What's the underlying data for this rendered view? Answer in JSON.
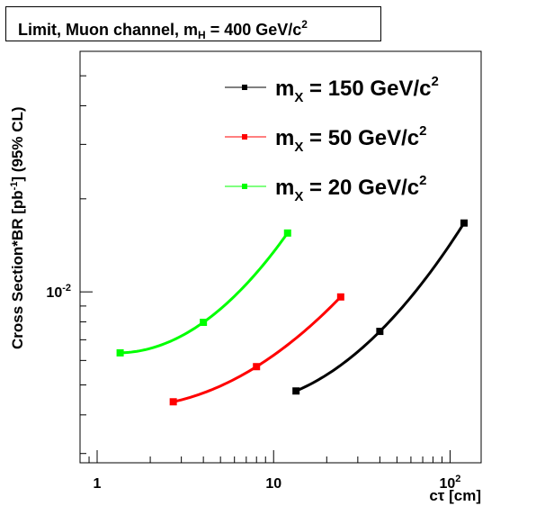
{
  "chart_data": {
    "type": "line",
    "title": {
      "prefix": "Limit, Muon channel, m",
      "sub": "H",
      "mid": " = 400 GeV/c",
      "sup": "2"
    },
    "xlabel": "cτ [cm]",
    "ylabel": {
      "prefix": "Cross Section*BR [pb",
      "sup": "-1",
      "suffix": "] (95% CL)"
    },
    "x_scale": "log",
    "y_scale": "log",
    "xlim": [
      0.8,
      150
    ],
    "ylim": [
      0.0028,
      0.06
    ],
    "x_ticks": [
      {
        "value": 1,
        "label": "1"
      },
      {
        "value": 10,
        "label": "10"
      },
      {
        "value": 100,
        "label": "10",
        "sup": "2"
      }
    ],
    "y_ticks": [
      {
        "value": 0.01,
        "label": "10",
        "sup": "-2"
      }
    ],
    "legend_placement": "top-right",
    "series": [
      {
        "name_prefix": "m",
        "name_sub": "X",
        "name_suffix": " = 150 GeV/c",
        "name_sup": "2",
        "color": "#000000",
        "x": [
          13.4,
          40,
          120
        ],
        "y": [
          0.00478,
          0.00745,
          0.0167
        ]
      },
      {
        "name_prefix": "m",
        "name_sub": "X",
        "name_suffix": " = 50 GeV/c",
        "name_sup": "2",
        "color": "#ff0000",
        "x": [
          2.7,
          8,
          24
        ],
        "y": [
          0.00441,
          0.00573,
          0.00963
        ]
      },
      {
        "name_prefix": "m",
        "name_sub": "X",
        "name_suffix": " = 20 GeV/c",
        "name_sup": "2",
        "color": "#00ff00",
        "x": [
          1.35,
          4,
          12
        ],
        "y": [
          0.00635,
          0.00797,
          0.0155
        ]
      }
    ]
  }
}
